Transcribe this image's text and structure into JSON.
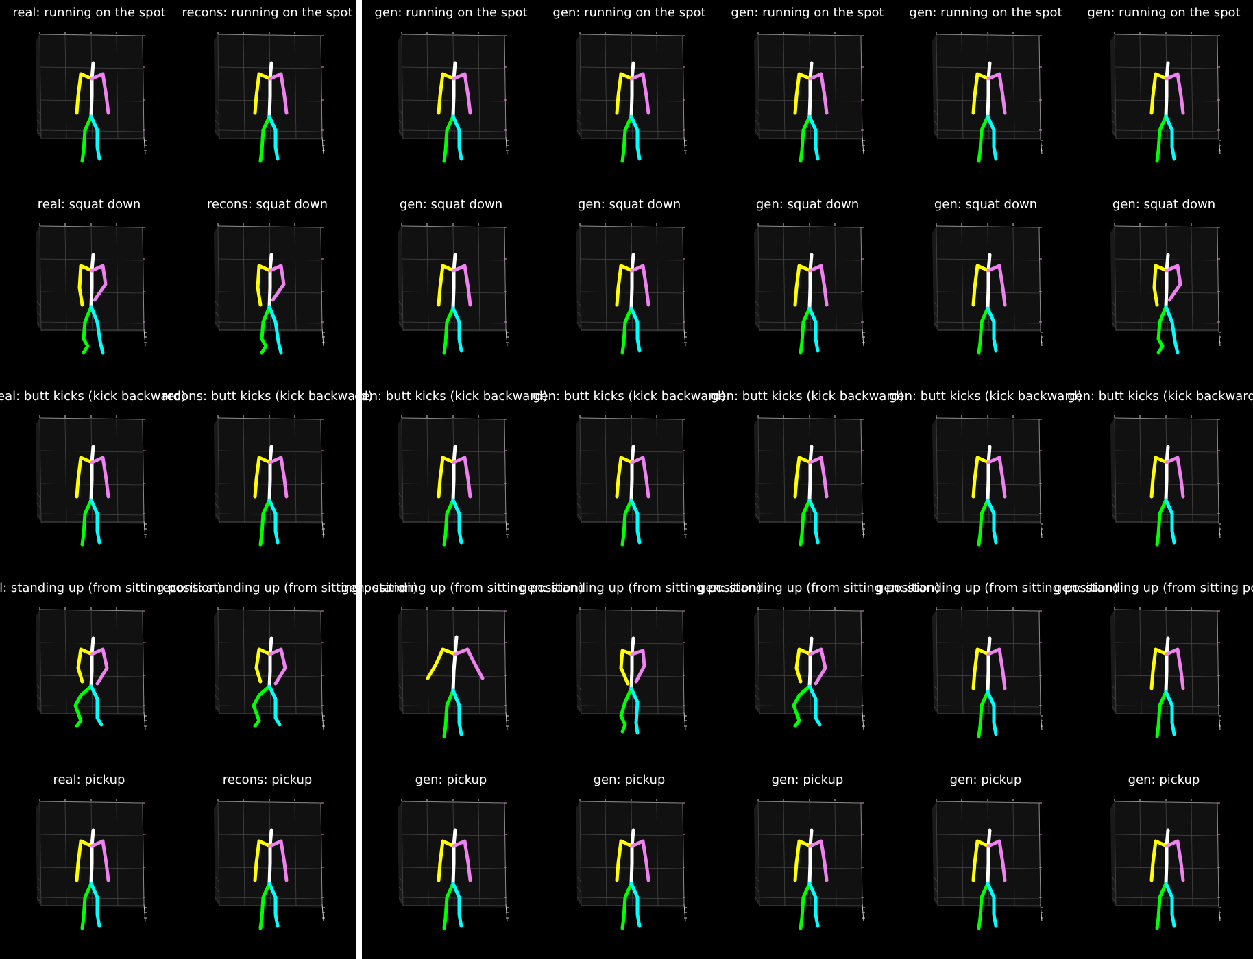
{
  "columns": [
    {
      "kind": "real"
    },
    {
      "kind": "recons"
    },
    {
      "kind": "gen"
    },
    {
      "kind": "gen"
    },
    {
      "kind": "gen"
    },
    {
      "kind": "gen"
    },
    {
      "kind": "gen"
    }
  ],
  "rows": [
    {
      "titles": [
        "real: running on the spot",
        "recons: running on the spot",
        "gen: running on the spot",
        "gen: running on the spot",
        "gen: running on the spot",
        "gen: running on the spot",
        "gen: running on the spot"
      ],
      "poses": [
        "stand",
        "stand",
        "stand",
        "stand",
        "stand",
        "stand",
        "stand"
      ]
    },
    {
      "titles": [
        "real: squat down",
        "recons: squat down",
        "gen: squat down",
        "gen: squat down",
        "gen: squat down",
        "gen: squat down",
        "gen: squat down"
      ],
      "poses": [
        "squat",
        "squat",
        "stand",
        "stand",
        "stand",
        "stand",
        "squat"
      ]
    },
    {
      "titles": [
        "real: butt kicks (kick backward)",
        "recons: butt kicks (kick backward)",
        "gen: butt kicks (kick backward)",
        "gen: butt kicks (kick backward)",
        "gen: butt kicks (kick backward)",
        "gen: butt kicks (kick backward)",
        "gen: butt kicks (kick backward)"
      ],
      "poses": [
        "stand",
        "stand",
        "stand",
        "stand",
        "stand",
        "stand",
        "stand"
      ]
    },
    {
      "titles": [
        "real: standing up (from sitting position)",
        "recons: standing up (from sitting position)",
        "gen: standing up (from sitting position)",
        "gen: standing up (from sitting position)",
        "gen: standing up (from sitting position)",
        "gen: standing up (from sitting position)",
        "gen: standing up (from sitting position)"
      ],
      "poses": [
        "sit",
        "sit",
        "armsout",
        "crossed",
        "sit",
        "stand",
        "stand"
      ]
    },
    {
      "titles": [
        "real: pickup",
        "recons: pickup",
        "gen: pickup",
        "gen: pickup",
        "gen: pickup",
        "gen: pickup",
        "gen: pickup"
      ],
      "poses": [
        "stand",
        "stand",
        "stand",
        "stand",
        "stand",
        "stand",
        "stand"
      ]
    }
  ],
  "limb_colors": {
    "spine": "#ffffff",
    "left_arm": "#ffff00",
    "right_arm": "#ee82ee",
    "left_leg": "#00ff00",
    "right_leg": "#00ffff"
  },
  "plot_background": "#111111",
  "grid_color": "#444444"
}
